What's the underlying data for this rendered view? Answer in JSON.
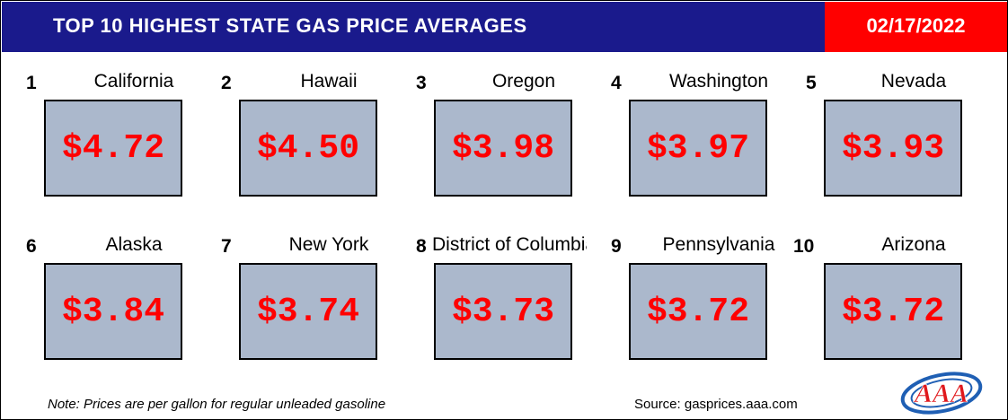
{
  "header": {
    "title": "TOP 10 HIGHEST STATE GAS PRICE AVERAGES",
    "date": "02/17/2022"
  },
  "rankings": [
    {
      "rank": "1",
      "state": "California",
      "price": "$4.72"
    },
    {
      "rank": "2",
      "state": "Hawaii",
      "price": "$4.50"
    },
    {
      "rank": "3",
      "state": "Oregon",
      "price": "$3.98"
    },
    {
      "rank": "4",
      "state": "Washington",
      "price": "$3.97"
    },
    {
      "rank": "5",
      "state": "Nevada",
      "price": "$3.93"
    },
    {
      "rank": "6",
      "state": "Alaska",
      "price": "$3.84"
    },
    {
      "rank": "7",
      "state": "New York",
      "price": "$3.74"
    },
    {
      "rank": "8",
      "state": "District of Columbia",
      "price": "$3.73"
    },
    {
      "rank": "9",
      "state": "Pennsylvania",
      "price": "$3.72"
    },
    {
      "rank": "10",
      "state": "Arizona",
      "price": "$3.72"
    }
  ],
  "footer": {
    "note": "Note: Prices are per gallon for regular unleaded gasoline",
    "source": "Source: gasprices.aaa.com",
    "logo_text": "AAA"
  },
  "colors": {
    "header_band": "#1a1a8c",
    "date_band": "#ff0000",
    "price_box": "#abb8cc",
    "price_text": "#ff0000"
  }
}
